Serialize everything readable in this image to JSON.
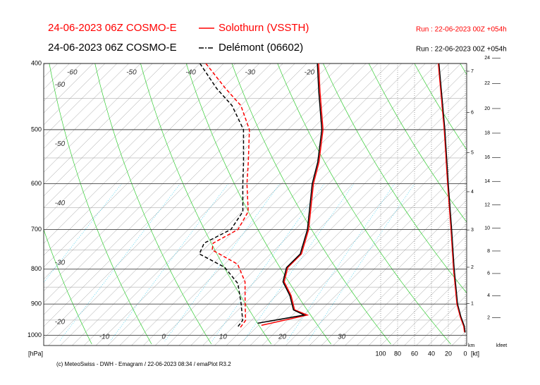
{
  "header": [
    {
      "model": "24-06-2023 06Z COSMO-E",
      "station": "Solothurn (VSSTH)",
      "run": "Run : 22-06-2023 00Z +054h",
      "color": "#ff0000",
      "dash": "none"
    },
    {
      "model": "24-06-2023 06Z COSMO-E",
      "station": "Delémont (06602)",
      "run": "Run : 22-06-2023 00Z +054h",
      "color": "#000000",
      "dash": "7,2,2,2"
    }
  ],
  "chart_data": {
    "type": "emagram",
    "ylim": [
      400,
      1035
    ],
    "yticks": [
      400,
      500,
      600,
      700,
      800,
      900,
      1000
    ],
    "minor_isobars": [
      450,
      550,
      650,
      750,
      850,
      950
    ],
    "y_axis_label": "[hPa]",
    "xlim": [
      -18.8,
      52.5
    ],
    "xticks": [
      -10,
      0,
      10,
      20,
      30
    ],
    "isotherm_labels_top": [
      -60,
      -50,
      -40,
      -30,
      -20
    ],
    "isotherm_labels_left": [
      -60,
      -50,
      -40,
      -30,
      -20
    ],
    "series": [
      {
        "color": "#ff0000",
        "dash": "none",
        "pressure": [
          400,
          440,
          500,
          558,
          600,
          700,
          760,
          796,
          835,
          875,
          918,
          934,
          967
        ],
        "values": [
          -20,
          -15,
          -8.1,
          -3.3,
          -0.6,
          6.3,
          9.2,
          9.2,
          11,
          14.5,
          17.5,
          20.5,
          14.5
        ]
      },
      {
        "color": "#000000",
        "dash": "none",
        "pressure": [
          400,
          440,
          500,
          558,
          600,
          700,
          760,
          796,
          835,
          875,
          918,
          934,
          960
        ],
        "values": [
          -20.2,
          -15.2,
          -8.3,
          -3.5,
          -0.8,
          6.1,
          9,
          9,
          10.8,
          14.3,
          17.3,
          20,
          13.5
        ]
      },
      {
        "color": "#ff0000",
        "dash": "5,3",
        "pressure": [
          400,
          435,
          461,
          500,
          558,
          600,
          659,
          700,
          733,
          750,
          787,
          835,
          897,
          951,
          974
        ],
        "values": [
          -39,
          -31.5,
          -26,
          -20.5,
          -15.2,
          -11.8,
          -6.9,
          -5.6,
          -7.5,
          -6.5,
          0.2,
          4.4,
          8,
          11,
          11.3
        ]
      },
      {
        "color": "#000000",
        "dash": "5,3",
        "pressure": [
          400,
          435,
          461,
          500,
          558,
          600,
          659,
          700,
          733,
          760,
          795,
          840,
          900,
          951,
          975
        ],
        "values": [
          -40,
          -33,
          -27.5,
          -21.5,
          -16,
          -12.5,
          -7.8,
          -6.8,
          -9,
          -8,
          -1.5,
          3.5,
          7.5,
          10.5,
          10.8
        ]
      }
    ],
    "wind_xlim": [
      100,
      0
    ],
    "wind_xticks": [
      100,
      80,
      60,
      40,
      20,
      0
    ],
    "wind_label": "[kt]",
    "wind_speed": [
      {
        "color": "#ff0000",
        "pressure": [
          400,
          500,
          600,
          700,
          800,
          900,
          940,
          970,
          990
        ],
        "values": [
          32,
          25,
          21,
          17,
          14,
          10,
          6,
          2,
          1
        ]
      },
      {
        "color": "#000000",
        "pressure": [
          400,
          500,
          600,
          700,
          800,
          900,
          940,
          970,
          990
        ],
        "values": [
          31,
          24,
          20,
          16,
          13,
          9,
          5,
          1,
          0
        ]
      }
    ],
    "km_label": "km",
    "km_ticks": [
      1,
      2,
      3,
      4,
      5,
      6,
      7
    ],
    "kfeet_label": "kfeet",
    "kfeet_ticks": [
      2,
      4,
      6,
      8,
      10,
      12,
      14,
      16,
      18,
      20,
      22,
      24
    ]
  },
  "footer": "(c) MeteoSwiss - DWH - Emagram / 22-06-2023  08:34 / emaPlot R3.2"
}
